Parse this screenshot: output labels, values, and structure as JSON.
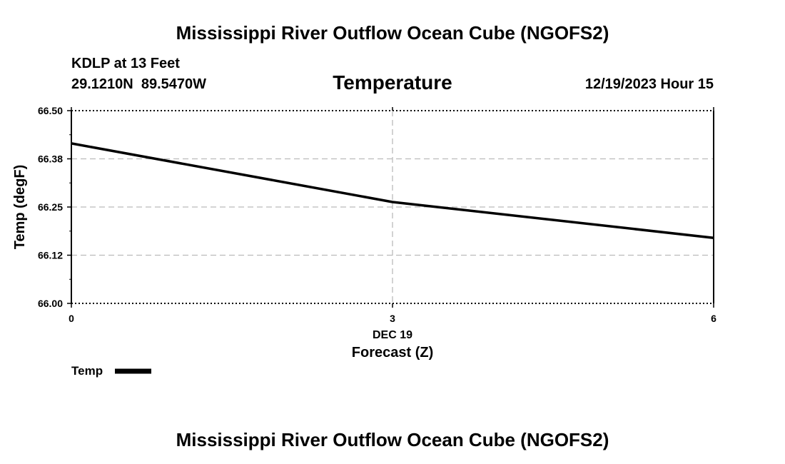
{
  "page": {
    "title": "Mississippi River Outflow Ocean Cube (NGOFS2)",
    "bottom_title": "Mississippi River Outflow Ocean Cube (NGOFS2)",
    "station": "KDLP at 13 Feet",
    "coords": "29.1210N  89.5470W",
    "panel_title": "Temperature",
    "datetime": "12/19/2023 Hour 15"
  },
  "chart_data": {
    "type": "line",
    "title": "Temperature",
    "xlabel": "Forecast (Z)",
    "xlabel_date": "DEC 19",
    "ylabel": "Temp (degF)",
    "xlim": [
      0,
      6
    ],
    "ylim": [
      66.0,
      66.5
    ],
    "x_ticks": [
      0,
      3,
      6
    ],
    "x_tick_labels": [
      "0",
      "3",
      "6"
    ],
    "y_ticks": [
      66.0,
      66.125,
      66.25,
      66.375,
      66.5
    ],
    "y_tick_labels": [
      "66.00",
      "66.12",
      "66.25",
      "66.38",
      "66.50"
    ],
    "grid": true,
    "legend": [
      {
        "name": "Temp",
        "color": "#000000"
      }
    ],
    "series": [
      {
        "name": "Temp",
        "color": "#000000",
        "x": [
          0,
          3,
          6
        ],
        "y": [
          66.415,
          66.263,
          66.17
        ]
      }
    ]
  }
}
